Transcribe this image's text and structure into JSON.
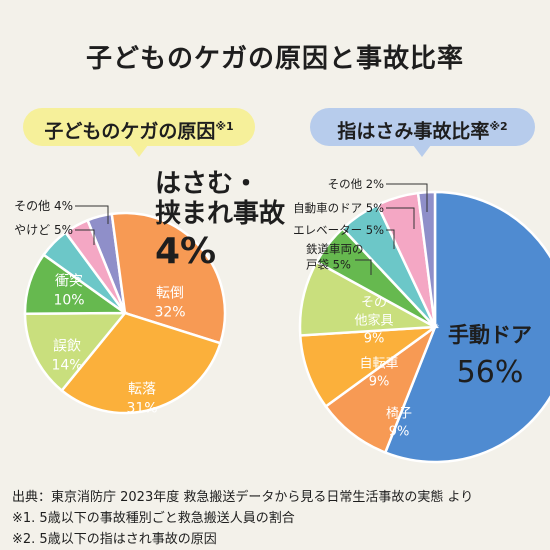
{
  "title": "子どものケガの原因と事故比率",
  "footer": {
    "source": "出典：東京消防庁 2023年度 救急搬送データから見る日常生活事故の実態 より",
    "note1": "※1. 5歳以下の事故種別ごと救急搬送人員の割合",
    "note2": "※2. 5歳以下の指はされ事故の原因"
  },
  "chart_data": [
    {
      "type": "pie",
      "title": "子どものケガの原因",
      "title_note": "※1",
      "unit": "%",
      "slices": [
        {
          "label": "はさむ・挟まれ事故",
          "value": 4,
          "display": "4%",
          "color": "#8f8fc9"
        },
        {
          "label": "転倒",
          "value": 32,
          "display": "32%",
          "color": "#f79a54"
        },
        {
          "label": "転落",
          "value": 31,
          "display": "31%",
          "color": "#fbb03b"
        },
        {
          "label": "誤飲",
          "value": 14,
          "display": "14%",
          "color": "#c9df7d"
        },
        {
          "label": "衝突",
          "value": 10,
          "display": "10%",
          "color": "#66b94f"
        },
        {
          "label": "やけど",
          "value": 5,
          "display": "5%",
          "color": "#6cc7c8"
        },
        {
          "label": "その他",
          "value": 4,
          "display": "4%",
          "color": "#f4a7c4"
        }
      ]
    },
    {
      "type": "pie",
      "title": "指はさみ事故比率",
      "title_note": "※2",
      "unit": "%",
      "slices": [
        {
          "label": "手動ドア",
          "value": 56,
          "display": "56%",
          "color": "#4f8bd1"
        },
        {
          "label": "椅子",
          "value": 9,
          "display": "9%",
          "color": "#f79a54"
        },
        {
          "label": "自転車",
          "value": 9,
          "display": "9%",
          "color": "#fbb03b"
        },
        {
          "label": "その他家具",
          "value": 9,
          "display": "9%",
          "color": "#c9df7d"
        },
        {
          "label": "鉄道車両の戸袋",
          "value": 5,
          "display": "5%",
          "color": "#66b94f"
        },
        {
          "label": "エレベーター",
          "value": 5,
          "display": "5%",
          "color": "#6cc7c8"
        },
        {
          "label": "自動車のドア",
          "value": 5,
          "display": "5%",
          "color": "#f4a7c4"
        },
        {
          "label": "その他",
          "value": 2,
          "display": "2%",
          "color": "#8f8fc9"
        }
      ]
    }
  ]
}
